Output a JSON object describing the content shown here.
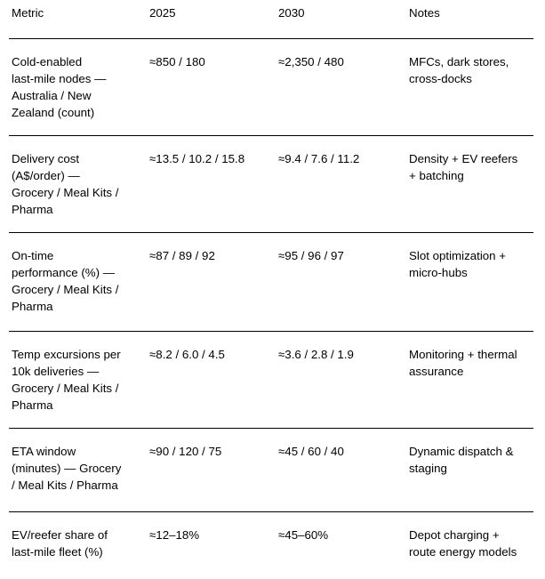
{
  "colors": {
    "text": "#000000",
    "border": "#000000",
    "background": "#ffffff"
  },
  "table": {
    "columns": [
      "Metric",
      "2025",
      "2030",
      "Notes"
    ],
    "rows": [
      {
        "metric": "Cold-enabled\nlast-mile nodes —\nAustralia / New\nZealand (count)",
        "v2025": "≈850 / 180",
        "v2030": "≈2,350 / 480",
        "notes": "MFCs, dark stores,\ncross-docks"
      },
      {
        "metric": "Delivery cost\n(A$/order) —\nGrocery / Meal Kits /\nPharma",
        "v2025": "≈13.5 / 10.2 / 15.8",
        "v2030": "≈9.4 / 7.6 / 11.2",
        "notes": "Density + EV reefers\n+ batching"
      },
      {
        "metric": "On-time\nperformance (%) —\nGrocery / Meal Kits /\nPharma",
        "v2025": "≈87 / 89 / 92",
        "v2030": "≈95 / 96 / 97",
        "notes": "Slot optimization +\nmicro-hubs"
      },
      {
        "metric": "Temp excursions per\n10k deliveries —\nGrocery / Meal Kits /\nPharma",
        "v2025": "≈8.2 / 6.0 / 4.5",
        "v2030": "≈3.6 / 2.8 / 1.9",
        "notes": "Monitoring + thermal\nassurance"
      },
      {
        "metric": "ETA window\n(minutes) — Grocery\n/ Meal Kits / Pharma",
        "v2025": "≈90 / 120 / 75",
        "v2030": "≈45 / 60 / 40",
        "notes": "Dynamic dispatch &\nstaging"
      },
      {
        "metric": "EV/reefer share of\nlast-mile fleet (%)",
        "v2025": "≈12–18%",
        "v2030": "≈45–60%",
        "notes": "Depot charging +\nroute energy models"
      }
    ]
  }
}
